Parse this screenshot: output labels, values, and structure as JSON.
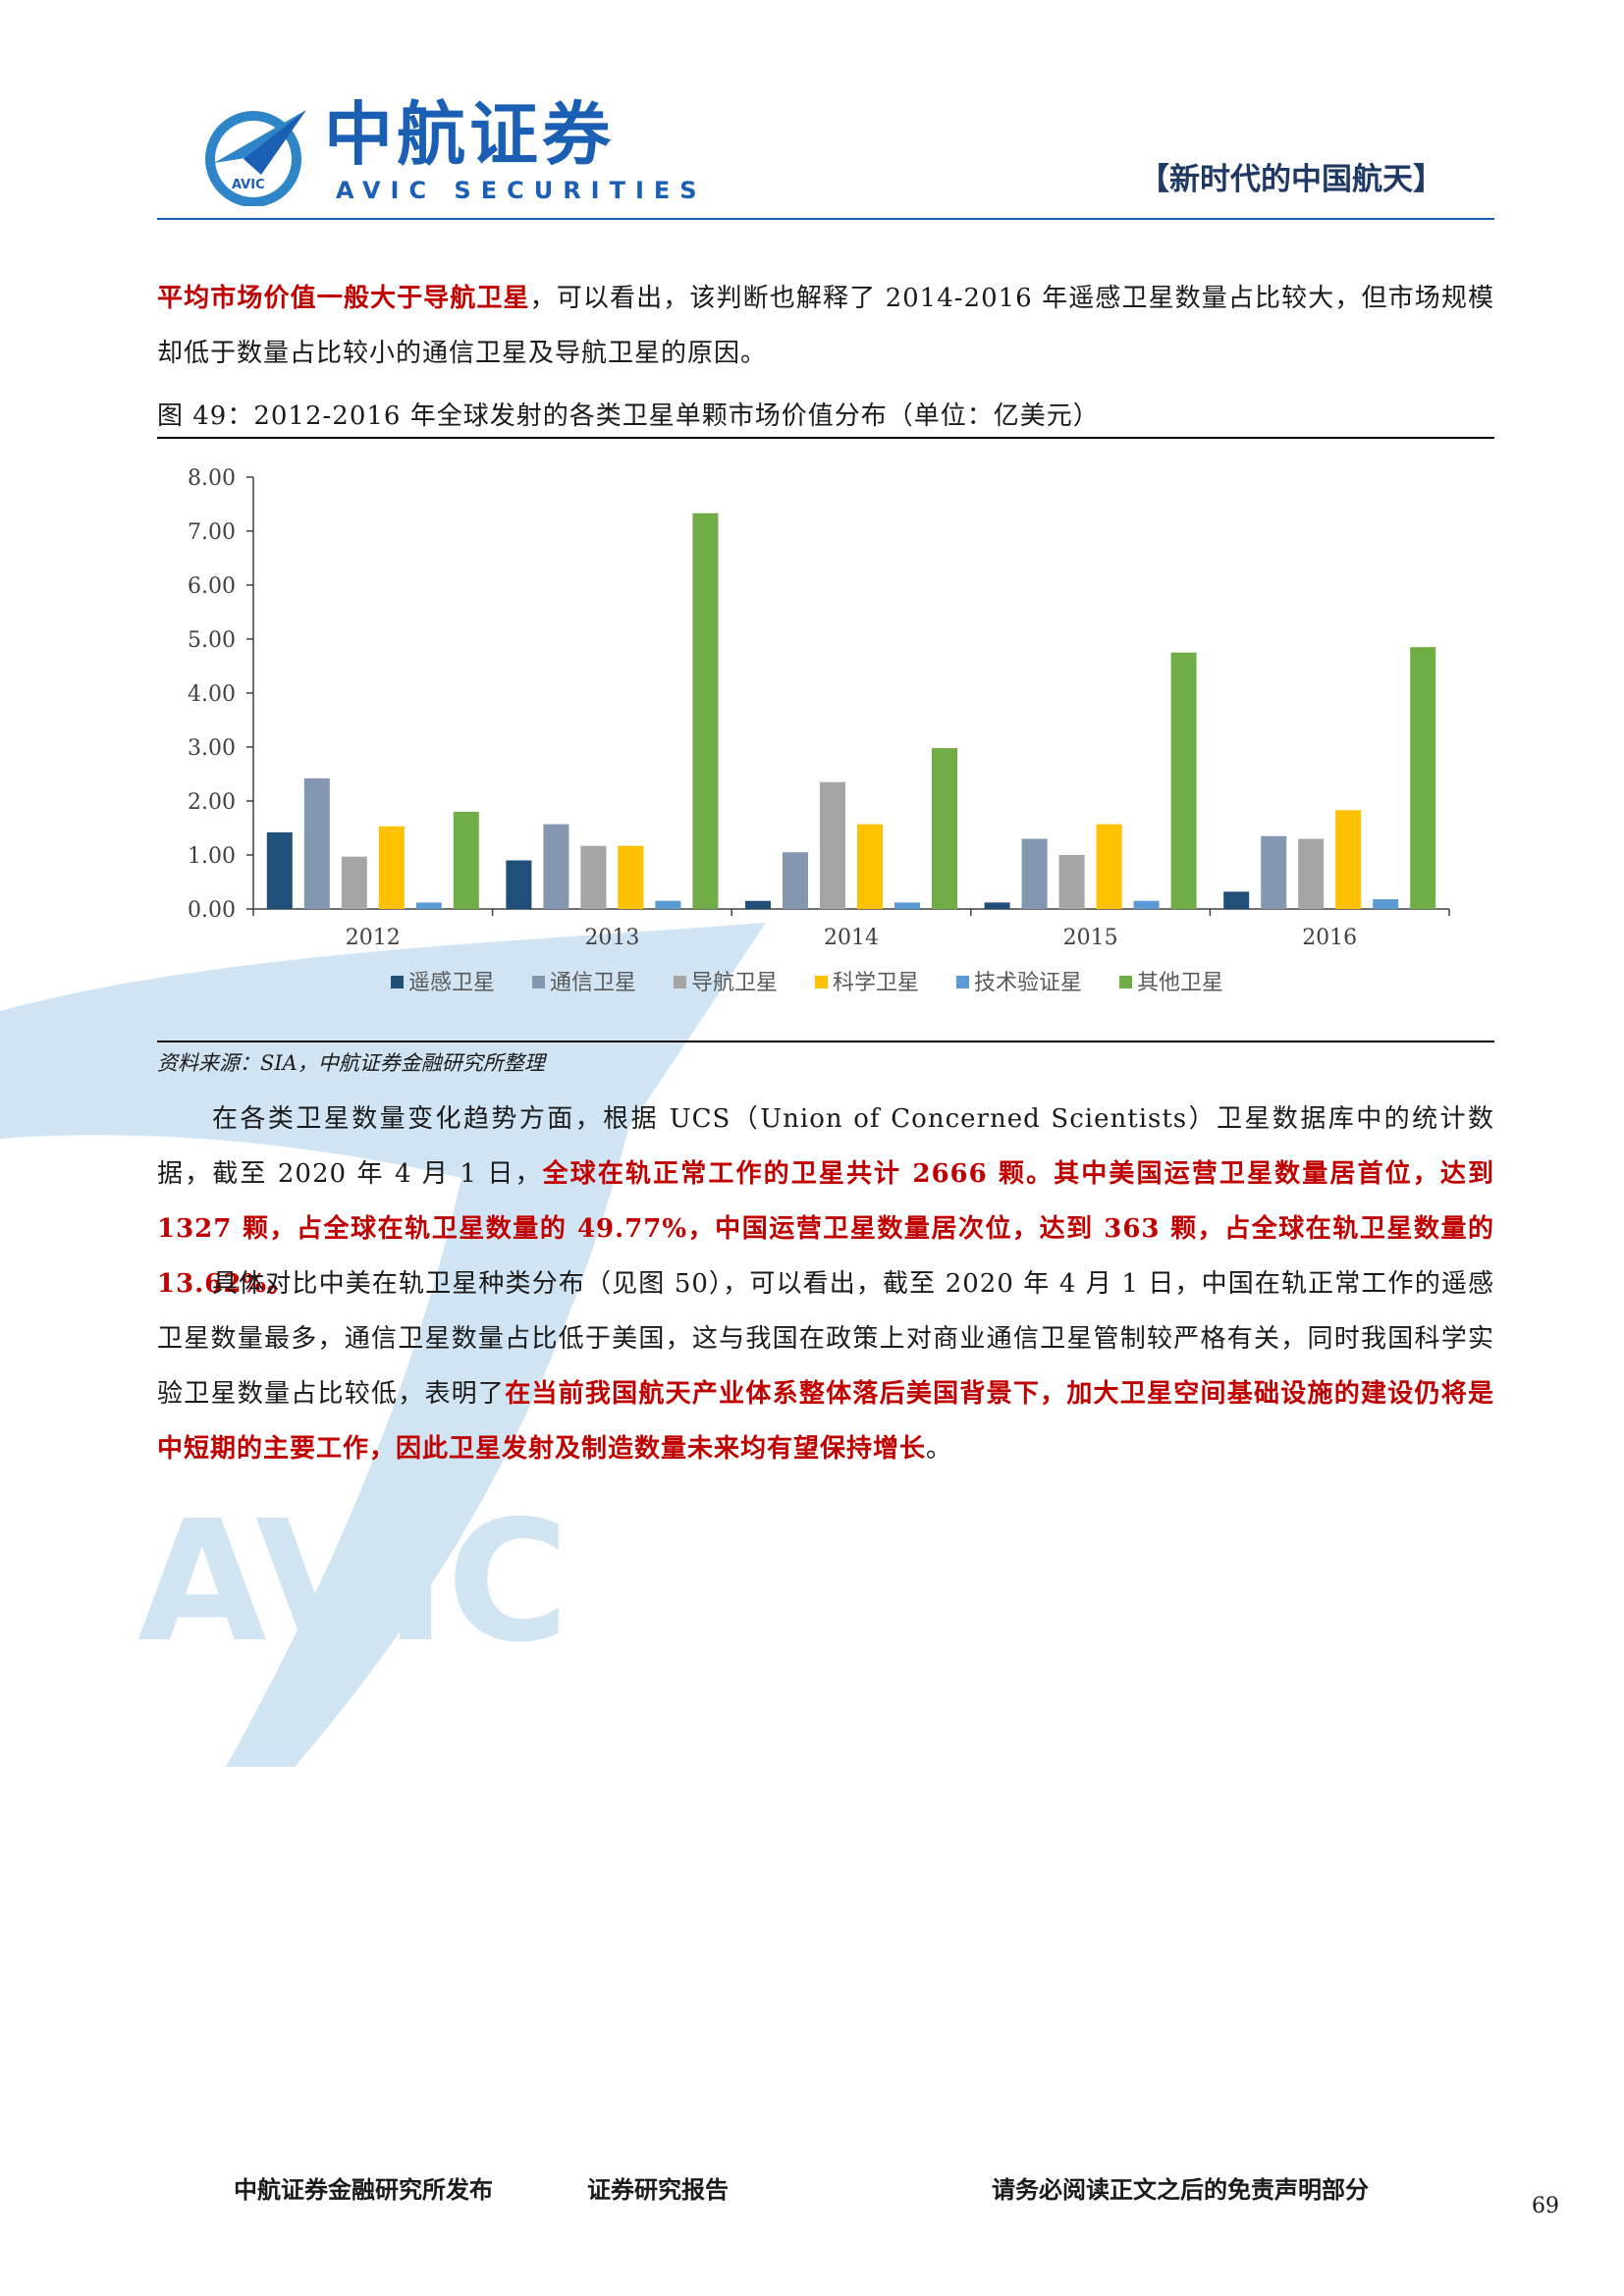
{
  "header": {
    "brand_cn": "中航证券",
    "brand_en": "AVIC SECURITIES",
    "logo_text": "AVIC",
    "section_tag": "【新时代的中国航天】"
  },
  "watermark": {
    "text": "AVIC"
  },
  "para1": {
    "red": "平均市场价值一般大于导航卫星",
    "rest": "，可以看出，该判断也解释了 2014-2016 年遥感卫星数量占比较大，但市场规模却低于数量占比较小的通信卫星及导航卫星的原因。"
  },
  "figure": {
    "caption": "图 49：2012-2016 年全球发射的各类卫星单颗市场价值分布（单位：亿美元）",
    "source": "资料来源：SIA，中航证券金融研究所整理"
  },
  "chart_data": {
    "type": "bar",
    "categories": [
      "2012",
      "2013",
      "2014",
      "2015",
      "2016"
    ],
    "ylim": [
      0,
      8
    ],
    "y_ticks": [
      "0.00",
      "1.00",
      "2.00",
      "3.00",
      "4.00",
      "5.00",
      "6.00",
      "7.00",
      "8.00"
    ],
    "legend_position": "bottom",
    "grid": false,
    "series": [
      {
        "name": "遥感卫星",
        "color": "#1f4e79",
        "values": [
          1.42,
          0.9,
          0.15,
          0.12,
          0.32
        ]
      },
      {
        "name": "通信卫星",
        "color": "#8497b0",
        "values": [
          2.42,
          1.57,
          1.05,
          1.3,
          1.35
        ]
      },
      {
        "name": "导航卫星",
        "color": "#a5a5a5",
        "values": [
          0.97,
          1.17,
          2.35,
          1.0,
          1.3
        ]
      },
      {
        "name": "科学卫星",
        "color": "#ffc000",
        "values": [
          1.53,
          1.17,
          1.57,
          1.57,
          1.83
        ]
      },
      {
        "name": "技术验证星",
        "color": "#5b9bd5",
        "values": [
          0.12,
          0.15,
          0.12,
          0.15,
          0.18
        ]
      },
      {
        "name": "其他卫星",
        "color": "#70ad47",
        "values": [
          1.8,
          7.33,
          2.98,
          4.75,
          4.85
        ]
      }
    ]
  },
  "para2": {
    "plain1": "在各类卫星数量变化趋势方面，根据 UCS（Union of Concerned Scientists）卫星数据库中的统计数据，截至 2020 年 4 月 1 日，",
    "red": "全球在轨正常工作的卫星共计 2666 颗。其中美国运营卫星数量居首位，达到 1327 颗，占全球在轨卫星数量的 49.77%，中国运营卫星数量居次位，达到 363 颗，占全球在轨卫星数量的 13.62%。"
  },
  "para3": {
    "plain1": "具体对比中美在轨卫星种类分布（见图 50），可以看出，截至 2020 年 4 月 1 日，中国在轨正常工作的遥感卫星数量最多，通信卫星数量占比低于美国，这与我国在政策上对商业通信卫星管制较严格有关，同时我国科学实验卫星数量占比较低，表明了",
    "red": "在当前我国航天产业体系整体落后美国背景下，加大卫星空间基础设施的建设仍将是中短期的主要工作，因此卫星发射及制造数量未来均有望保持增长",
    "end": "。"
  },
  "footer": {
    "publisher": "中航证券金融研究所发布",
    "report_type": "证券研究报告",
    "disclaimer": "请务必阅读正文之后的免责声明部分",
    "page_number": "69"
  }
}
